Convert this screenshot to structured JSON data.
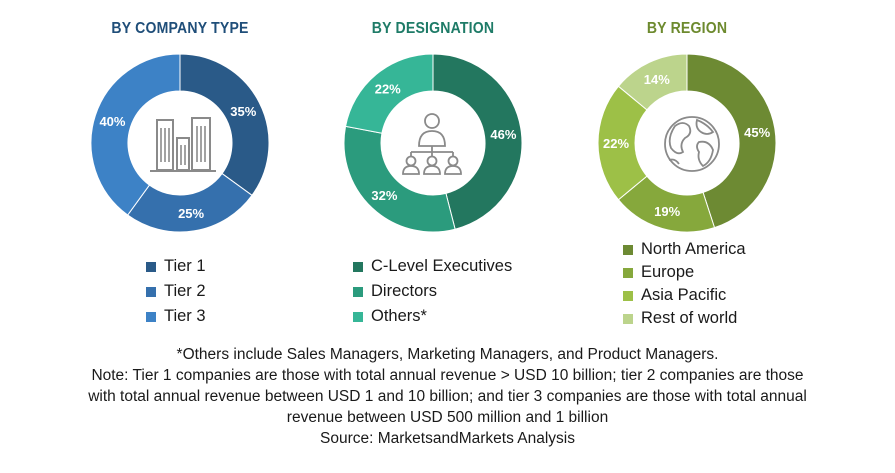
{
  "colors": {
    "company_title": "#1f4e79",
    "designation_title": "#1e7b67",
    "region_title": "#6d8a2e",
    "icon_stroke": "#8a8a8a"
  },
  "chart_data": [
    {
      "type": "pie",
      "title": "BY COMPANY TYPE",
      "categories": [
        "Tier 1",
        "Tier 2",
        "Tier 3"
      ],
      "values": [
        35,
        25,
        40
      ],
      "labels": [
        "35%",
        "25%",
        "40%"
      ],
      "colors": [
        "#2a5a88",
        "#3570ad",
        "#3d82c6"
      ],
      "icon": "buildings-icon",
      "legend_position": "bottom"
    },
    {
      "type": "pie",
      "title": "BY DESIGNATION",
      "categories": [
        "C-Level Executives",
        "Directors",
        "Others*"
      ],
      "values": [
        46,
        32,
        22
      ],
      "labels": [
        "46%",
        "32%",
        "22%"
      ],
      "colors": [
        "#23775f",
        "#2b9b7d",
        "#36b697"
      ],
      "icon": "presenter-audience-icon",
      "legend_position": "bottom"
    },
    {
      "type": "pie",
      "title": "BY REGION",
      "categories": [
        "North America",
        "Europe",
        "Asia Pacific",
        "Rest of world"
      ],
      "values": [
        45,
        19,
        22,
        14
      ],
      "labels": [
        "45%",
        "19%",
        "22%",
        "14%"
      ],
      "colors": [
        "#6d8a33",
        "#86a83c",
        "#9dc047",
        "#bcd48c"
      ],
      "icon": "globe-icon",
      "legend_position": "bottom"
    }
  ],
  "notes": {
    "others": "*Others include Sales Managers, Marketing Managers, and Product Managers.",
    "note_lines": [
      "Note: Tier 1 companies are those with total annual revenue > USD 10 billion; tier 2 companies are those",
      "with total annual revenue between USD 1 and 10 billion; and tier 3 companies are those with total annual",
      "revenue between USD 500 million and 1 billion"
    ],
    "source": "Source: MarketsandMarkets Analysis"
  }
}
